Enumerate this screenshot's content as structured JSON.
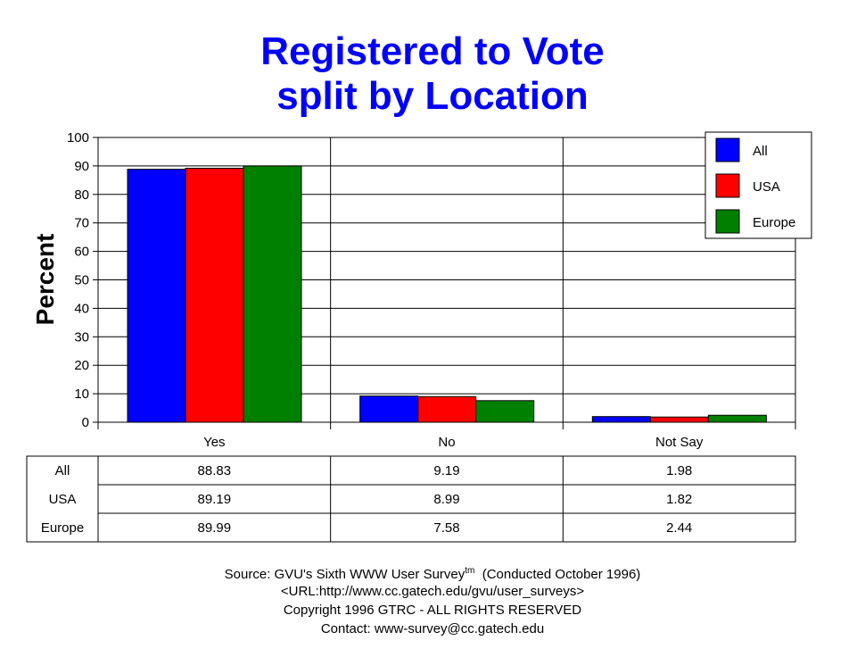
{
  "chart_data": {
    "type": "bar",
    "title": "Registered to Vote",
    "subtitle": "split by Location",
    "ylabel": "Percent",
    "xlabel": "",
    "ylim": [
      0,
      100
    ],
    "yticks": [
      0,
      10,
      20,
      30,
      40,
      50,
      60,
      70,
      80,
      90,
      100
    ],
    "grid": true,
    "legend_position": "top-right",
    "categories": [
      "Yes",
      "No",
      "Not Say"
    ],
    "series": [
      {
        "name": "All",
        "color": "#0000ff",
        "values": [
          88.83,
          9.19,
          1.98
        ]
      },
      {
        "name": "USA",
        "color": "#ff0000",
        "values": [
          89.19,
          8.99,
          1.82
        ]
      },
      {
        "name": "Europe",
        "color": "#008000",
        "values": [
          89.99,
          7.58,
          2.44
        ]
      }
    ],
    "table": {
      "rows": [
        {
          "label": "All",
          "cells": [
            "88.83",
            "9.19",
            "1.98"
          ]
        },
        {
          "label": "USA",
          "cells": [
            "89.19",
            "8.99",
            "1.82"
          ]
        },
        {
          "label": "Europe",
          "cells": [
            "89.99",
            "7.58",
            "2.44"
          ]
        }
      ]
    }
  },
  "footer": {
    "source_prefix": "Source: GVU's Sixth WWW User Survey",
    "tm": "tm",
    "source_suffix": "  (Conducted October 1996)",
    "url": "<URL:http://www.cc.gatech.edu/gvu/user_surveys>",
    "copyright": "Copyright 1996 GTRC -  ALL RIGHTS RESERVED",
    "contact": "Contact: www-survey@cc.gatech.edu"
  }
}
